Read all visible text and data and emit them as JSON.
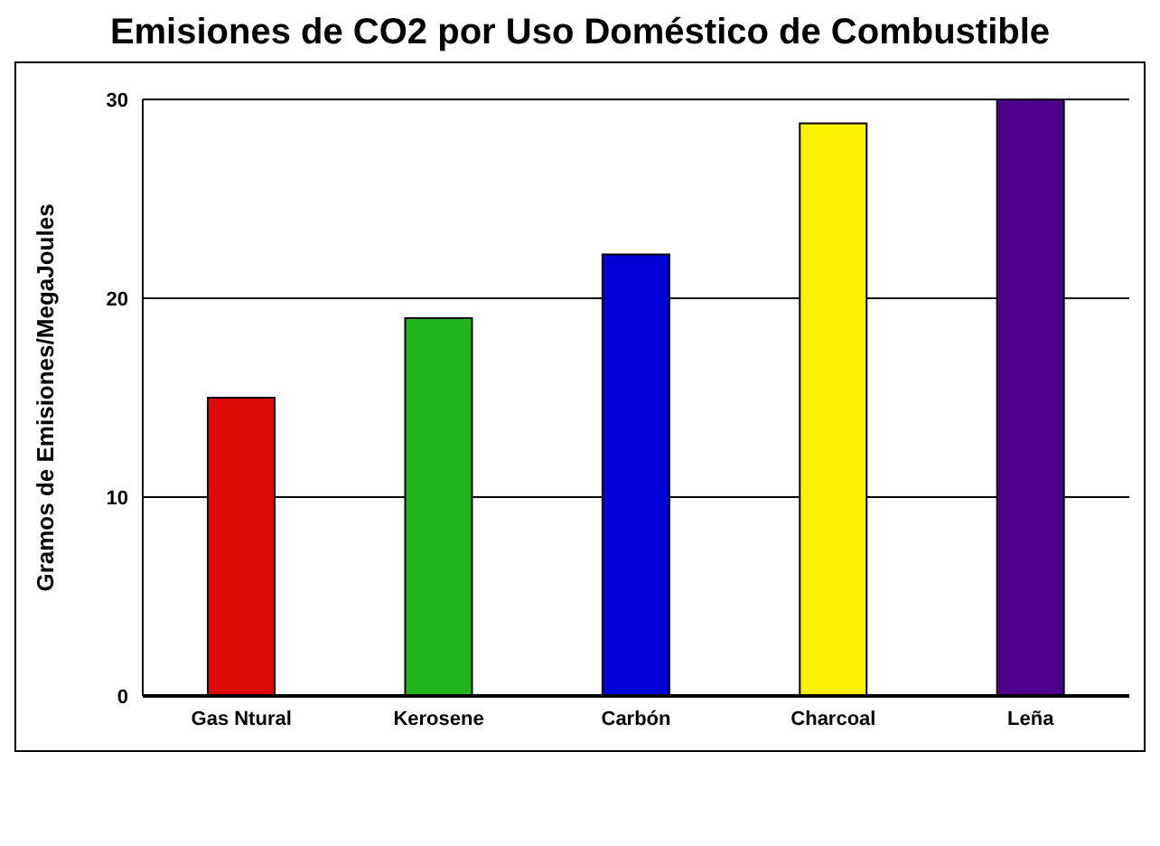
{
  "chart_data": {
    "type": "bar",
    "title": "Emisiones de CO2 por Uso Doméstico de Combustible",
    "ylabel": "Gramos de Emisiones/MegaJoules",
    "categories": [
      "Gas Ntural",
      "Kerosene",
      "Carbón",
      "Charcoal",
      "Leña"
    ],
    "values": [
      15,
      19,
      22.2,
      28.8,
      30
    ],
    "colors": [
      "#dd0a05",
      "#20b519",
      "#0000d8",
      "#fcf200",
      "#4f008c"
    ],
    "ylim": [
      0,
      30
    ],
    "yticks": [
      0,
      10,
      20,
      30
    ],
    "grid": "y"
  }
}
